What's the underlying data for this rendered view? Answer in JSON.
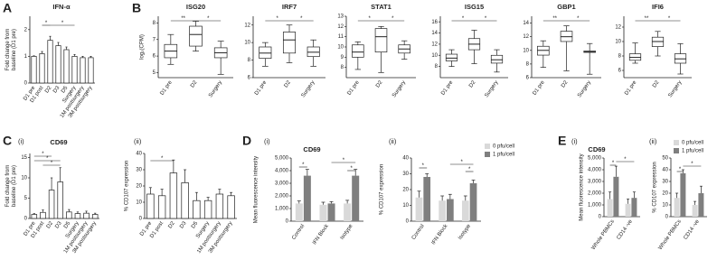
{
  "chart_data": [
    {
      "type": "bar",
      "panel": "A",
      "title": "IFN-α",
      "ylabel": [
        "Fold change from",
        "baseline (D1 pre)"
      ],
      "categories": [
        "D1 pre",
        "D1 post",
        "D2",
        "D3",
        "D5",
        "Surgery",
        "1M postsurgery",
        "3M postsurgery"
      ],
      "values": [
        1.0,
        1.1,
        1.6,
        1.4,
        1.25,
        1.0,
        0.95,
        0.95
      ],
      "errors": [
        0.02,
        0.08,
        0.15,
        0.12,
        0.1,
        0.07,
        0.05,
        0.05
      ],
      "color": "#ffffff",
      "ylim": [
        0,
        2.5
      ],
      "yticks": [
        0,
        1,
        2
      ],
      "annotations": [
        "*",
        "*"
      ]
    },
    {
      "type": "box",
      "panel": "B",
      "title": "ISG20",
      "ylabel": [
        "log₂(CPM)"
      ],
      "categories": [
        "D1 pre",
        "D2",
        "Surgery"
      ],
      "values": [
        [
          5.5,
          5.9,
          6.3,
          6.7,
          7.3
        ],
        [
          6.3,
          6.6,
          7.3,
          7.8,
          8.1
        ],
        [
          4.9,
          5.9,
          6.2,
          6.5,
          6.9
        ]
      ],
      "color": "#ffffff",
      "ylim": [
        4.7,
        8.4
      ],
      "yticks": [
        5,
        6,
        7,
        8
      ],
      "annotations": [
        "**",
        "*"
      ]
    },
    {
      "type": "box",
      "title": "IRF7",
      "categories": [
        "D1 pre",
        "D2",
        "Surgery"
      ],
      "values": [
        [
          7.3,
          8.2,
          8.8,
          9.5,
          10
        ],
        [
          7.7,
          8.8,
          10.3,
          11.2,
          12
        ],
        [
          7.3,
          8.4,
          8.9,
          9.5,
          10.3
        ]
      ],
      "color": "#ffffff",
      "ylim": [
        6,
        13
      ],
      "yticks": [
        6,
        8,
        10,
        12
      ],
      "annotations": [
        "*",
        "*"
      ]
    },
    {
      "type": "box",
      "title": "STAT1",
      "categories": [
        "D1 pre",
        "D2",
        "Surgery"
      ],
      "values": [
        [
          7.8,
          9,
          9.5,
          10.2,
          10.5
        ],
        [
          7.5,
          9.5,
          11,
          11.8,
          12
        ],
        [
          8.8,
          9.4,
          9.8,
          10.2,
          10.6
        ]
      ],
      "color": "#ffffff",
      "ylim": [
        7,
        13
      ],
      "yticks": [
        8,
        9,
        10,
        11,
        12,
        13
      ],
      "annotations": [
        "*",
        "*"
      ]
    },
    {
      "type": "box",
      "title": "ISG15",
      "categories": [
        "D1 pre",
        "D2",
        "Surgery"
      ],
      "values": [
        [
          8,
          9,
          9.5,
          10.2,
          11
        ],
        [
          8.5,
          11,
          12,
          13,
          14.5
        ],
        [
          7,
          8.6,
          9.2,
          10,
          11
        ]
      ],
      "color": "#ffffff",
      "ylim": [
        6,
        17
      ],
      "yticks": [
        8,
        10,
        12,
        14,
        16
      ],
      "annotations": [
        "*",
        "*"
      ]
    },
    {
      "type": "box",
      "title": "GBP1",
      "categories": [
        "D1 pre",
        "D2",
        "Surgery"
      ],
      "values": [
        [
          7.5,
          9.3,
          10,
          10.6,
          11.4
        ],
        [
          7,
          11.3,
          12,
          12.8,
          13.6
        ],
        [
          6.5,
          9.7,
          9.8,
          9.9,
          11
        ]
      ],
      "color": "#ffffff",
      "ylim": [
        6,
        15
      ],
      "yticks": [
        6,
        8,
        10,
        12,
        14
      ],
      "annotations": [
        "**",
        "*"
      ]
    },
    {
      "type": "box",
      "title": "IFI6",
      "categories": [
        "D1 pre",
        "D2",
        "Surgery"
      ],
      "values": [
        [
          7,
          7.4,
          7.8,
          8.3,
          9.8
        ],
        [
          8,
          9.3,
          10,
          10.6,
          11.4
        ],
        [
          5.5,
          7,
          7.6,
          8.3,
          9.7
        ]
      ],
      "color": "#ffffff",
      "ylim": [
        5,
        13.5
      ],
      "yticks": [
        6,
        8,
        10,
        12
      ],
      "annotations": [
        "**",
        "*"
      ]
    },
    {
      "type": "bar",
      "panel": "C",
      "sublabel": "(i)",
      "title": "CD69",
      "ylabel": [
        "Fold change from",
        "baseline (D1 pre)"
      ],
      "categories": [
        "D1 pre",
        "D1 post",
        "D2",
        "D3",
        "D5",
        "Surgery",
        "1M postsurgery",
        "3M postsurgery"
      ],
      "values": [
        1,
        1.5,
        7,
        9,
        1.6,
        1.2,
        1.3,
        1
      ],
      "errors": [
        0.2,
        0.6,
        3,
        3.5,
        0.6,
        0.4,
        0.5,
        0.3
      ],
      "color": "#ffffff",
      "ylim": [
        0,
        16
      ],
      "yticks": [
        0,
        5,
        10,
        15
      ],
      "annotations": [
        "*",
        "*",
        "*"
      ]
    },
    {
      "type": "bar",
      "sublabel": "(ii)",
      "ylabel": [
        "% CD107 expression"
      ],
      "categories": [
        "D1 pre",
        "D1 post",
        "D2",
        "D3",
        "D5",
        "Surgery",
        "1M postsurgery",
        "3M postsurgery"
      ],
      "values": [
        15,
        14,
        28,
        22,
        11,
        11,
        15,
        14
      ],
      "errors": [
        4,
        4,
        8,
        8,
        5,
        2,
        3,
        2
      ],
      "color": "#ffffff",
      "ylim": [
        0,
        40
      ],
      "yticks": [
        0,
        10,
        20,
        30,
        40
      ],
      "annotations": [
        "*"
      ]
    },
    {
      "type": "bar",
      "panel": "D",
      "sublabel": "(i)",
      "title": "CD69",
      "ylabel": [
        "Mean fluorescence intensity"
      ],
      "categories": [
        "Control",
        "IFN Block",
        "Isotype"
      ],
      "series": [
        {
          "color": "#d9d9d9",
          "values": [
            1400,
            1300,
            1400
          ],
          "errors": [
            200,
            200,
            250
          ]
        },
        {
          "color": "#7f7f7f",
          "values": [
            3600,
            1400,
            3600
          ],
          "errors": [
            500,
            150,
            500
          ]
        }
      ],
      "ylim": [
        0,
        5000
      ],
      "yticks": [
        0,
        {
          "value": 1000,
          "label": "1,000"
        },
        {
          "value": 2000,
          "label": "2,000"
        },
        {
          "value": 3000,
          "label": "3,000"
        },
        {
          "value": 4000,
          "label": "4,000"
        },
        {
          "value": 5000,
          "label": "5,000"
        }
      ],
      "annotations": [
        "*",
        "*",
        "*"
      ]
    },
    {
      "type": "bar",
      "sublabel": "(ii)",
      "ylabel": [
        "% CD107 expression"
      ],
      "legend": true,
      "categories": [
        "Control",
        "IFN Block",
        "Isotype"
      ],
      "series": [
        {
          "name": "0 pfu/cell",
          "color": "#d9d9d9",
          "values": [
            15,
            13,
            13
          ],
          "errors": [
            4,
            3,
            3
          ]
        },
        {
          "name": "1 pfu/cell",
          "color": "#7f7f7f",
          "values": [
            28,
            14,
            24
          ],
          "errors": [
            2,
            3,
            2
          ]
        }
      ],
      "ylim": [
        0,
        40
      ],
      "yticks": [
        0,
        10,
        20,
        30,
        40
      ],
      "annotations": [
        "*",
        "*",
        "*"
      ]
    },
    {
      "type": "bar",
      "panel": "E",
      "sublabel": "(i)",
      "title": "CD69",
      "ylabel": [
        "Mean fluorescence intensity"
      ],
      "categories": [
        "Whole PBMCs",
        "CD14 -ve"
      ],
      "series": [
        {
          "color": "#d9d9d9",
          "values": [
            1500,
            1100
          ],
          "errors": [
            600,
            400
          ]
        },
        {
          "color": "#7f7f7f",
          "values": [
            3400,
            1600
          ],
          "errors": [
            900,
            500
          ]
        }
      ],
      "ylim": [
        0,
        5000
      ],
      "yticks": [
        0,
        {
          "value": 1000,
          "label": "1,000"
        },
        {
          "value": 2000,
          "label": "2,000"
        },
        {
          "value": 3000,
          "label": "3,000"
        },
        {
          "value": 4000,
          "label": "4,000"
        },
        {
          "value": 5000,
          "label": "5,000"
        }
      ],
      "annotations": [
        "*",
        "*"
      ]
    },
    {
      "type": "bar",
      "sublabel": "(ii)",
      "ylabel": [
        "% CD107 expression"
      ],
      "legend": true,
      "categories": [
        "Whole PBMCs",
        "CD14 -ve"
      ],
      "series": [
        {
          "name": "0 pfu/cell",
          "color": "#d9d9d9",
          "values": [
            16,
            10
          ],
          "errors": [
            4,
            3
          ]
        },
        {
          "name": "1 pfu/cell",
          "color": "#7f7f7f",
          "values": [
            37,
            20
          ],
          "errors": [
            3,
            6
          ]
        }
      ],
      "ylim": [
        0,
        50
      ],
      "yticks": [
        0,
        10,
        20,
        30,
        40,
        50
      ],
      "annotations": [
        "*",
        "*"
      ]
    }
  ]
}
